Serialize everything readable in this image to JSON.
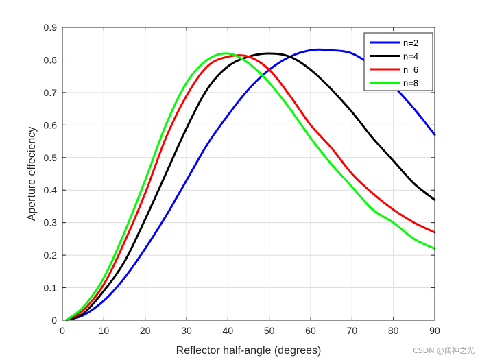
{
  "chart_data": {
    "type": "line",
    "title": "",
    "xlabel": "Reflector half-angle (degrees)",
    "ylabel": "Aperture effeciency",
    "xlim": [
      0,
      90
    ],
    "ylim": [
      0,
      0.9
    ],
    "xticks": [
      0,
      10,
      20,
      30,
      40,
      50,
      60,
      70,
      80,
      90
    ],
    "yticks": [
      0,
      0.1,
      0.2,
      0.3,
      0.4,
      0.5,
      0.6,
      0.7,
      0.8,
      0.9
    ],
    "xtick_labels": [
      "0",
      "10",
      "20",
      "30",
      "40",
      "50",
      "60",
      "70",
      "80",
      "90"
    ],
    "ytick_labels": [
      "0",
      "0.1",
      "0.2",
      "0.3",
      "0.4",
      "0.5",
      "0.6",
      "0.7",
      "0.8",
      "0.9"
    ],
    "grid": true,
    "legend_position": "top-right",
    "x": [
      1,
      5,
      10,
      15,
      20,
      25,
      30,
      35,
      40,
      45,
      50,
      55,
      60,
      65,
      70,
      75,
      80,
      85,
      90
    ],
    "series": [
      {
        "name": "n=2",
        "color": "#0000ff",
        "values": [
          0.001,
          0.015,
          0.06,
          0.13,
          0.22,
          0.32,
          0.43,
          0.54,
          0.63,
          0.71,
          0.77,
          0.81,
          0.83,
          0.83,
          0.82,
          0.78,
          0.72,
          0.65,
          0.57
        ]
      },
      {
        "name": "n=4",
        "color": "#000000",
        "values": [
          0.001,
          0.02,
          0.09,
          0.18,
          0.31,
          0.45,
          0.59,
          0.71,
          0.78,
          0.81,
          0.82,
          0.81,
          0.77,
          0.71,
          0.64,
          0.56,
          0.49,
          0.42,
          0.37
        ]
      },
      {
        "name": "n=6",
        "color": "#ff0000",
        "values": [
          0.001,
          0.03,
          0.11,
          0.24,
          0.39,
          0.56,
          0.69,
          0.78,
          0.81,
          0.81,
          0.77,
          0.69,
          0.6,
          0.53,
          0.45,
          0.39,
          0.34,
          0.3,
          0.27
        ]
      },
      {
        "name": "n=8",
        "color": "#00ff00",
        "values": [
          0.001,
          0.04,
          0.13,
          0.27,
          0.43,
          0.6,
          0.73,
          0.8,
          0.82,
          0.79,
          0.73,
          0.65,
          0.56,
          0.48,
          0.41,
          0.34,
          0.3,
          0.25,
          0.22
        ]
      }
    ]
  },
  "watermark": "CSDN @阔神之光"
}
